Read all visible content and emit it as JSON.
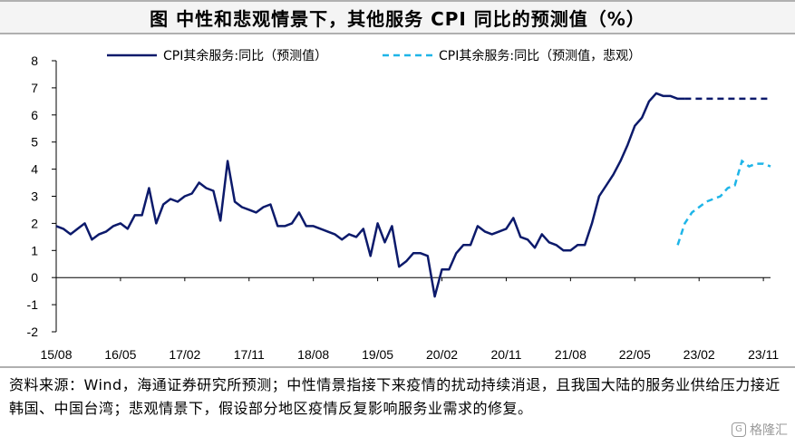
{
  "title": "图  中性和悲观情景下，其他服务 CPI 同比的预测值（%）",
  "footer": {
    "text": "资料来源：Wind，海通证券研究所预测；中性情景指接下来疫情的扰动持续消退，且我国大陆的服务业供给压力接近韩国、中国台湾；悲观情景下，假设部分地区疫情反复影响服务业需求的修复。"
  },
  "watermark": {
    "text": "格隆汇",
    "icon": "g-logo-icon"
  },
  "chart_data": {
    "type": "line",
    "title": "",
    "xlabel": "",
    "ylabel": "",
    "ylim": [
      -2,
      8
    ],
    "yticks": [
      -2,
      -1,
      0,
      1,
      2,
      3,
      4,
      5,
      6,
      7,
      8
    ],
    "xticks": [
      "15/08",
      "16/05",
      "17/02",
      "17/11",
      "18/08",
      "19/05",
      "20/02",
      "20/11",
      "21/08",
      "22/05",
      "23/02",
      "23/11"
    ],
    "x_start": "2015-08",
    "x_end": "2023-12",
    "grid": false,
    "legend_position": "top",
    "series": [
      {
        "name": "CPI其余服务:同比（预测值）",
        "color": "#0c1a6b",
        "style": "solid",
        "x": [
          "2015-08",
          "2015-09",
          "2015-10",
          "2015-11",
          "2015-12",
          "2016-01",
          "2016-02",
          "2016-03",
          "2016-04",
          "2016-05",
          "2016-06",
          "2016-07",
          "2016-08",
          "2016-09",
          "2016-10",
          "2016-11",
          "2016-12",
          "2017-01",
          "2017-02",
          "2017-03",
          "2017-04",
          "2017-05",
          "2017-06",
          "2017-07",
          "2017-08",
          "2017-09",
          "2017-10",
          "2017-11",
          "2017-12",
          "2018-01",
          "2018-02",
          "2018-03",
          "2018-04",
          "2018-05",
          "2018-06",
          "2018-07",
          "2018-08",
          "2018-09",
          "2018-10",
          "2018-11",
          "2018-12",
          "2019-01",
          "2019-02",
          "2019-03",
          "2019-04",
          "2019-05",
          "2019-06",
          "2019-07",
          "2019-08",
          "2019-09",
          "2019-10",
          "2019-11",
          "2019-12",
          "2020-01",
          "2020-02",
          "2020-03",
          "2020-04",
          "2020-05",
          "2020-06",
          "2020-07",
          "2020-08",
          "2020-09",
          "2020-10",
          "2020-11",
          "2020-12",
          "2021-01",
          "2021-02",
          "2021-03",
          "2021-04",
          "2021-05",
          "2021-06",
          "2021-07",
          "2021-08",
          "2021-09",
          "2021-10",
          "2021-11",
          "2021-12",
          "2022-01",
          "2022-02",
          "2022-03",
          "2022-04",
          "2022-05",
          "2022-06",
          "2022-07",
          "2022-08",
          "2022-09",
          "2022-10",
          "2022-11",
          "2022-12",
          "2023-01",
          "2023-02",
          "2023-03",
          "2023-04",
          "2023-05",
          "2023-06",
          "2023-07",
          "2023-08",
          "2023-09",
          "2023-10",
          "2023-11",
          "2023-12"
        ],
        "values": [
          1.9,
          1.8,
          1.6,
          1.8,
          2.0,
          1.4,
          1.6,
          1.7,
          1.9,
          2.0,
          1.8,
          2.3,
          2.3,
          3.3,
          2.0,
          2.7,
          2.9,
          2.8,
          3.0,
          3.1,
          3.5,
          3.3,
          3.2,
          2.1,
          4.3,
          2.8,
          2.6,
          2.5,
          2.4,
          2.6,
          2.7,
          1.9,
          1.9,
          2.0,
          2.4,
          1.9,
          1.9,
          1.8,
          1.7,
          1.6,
          1.4,
          1.6,
          1.5,
          1.8,
          0.8,
          2.0,
          1.3,
          1.9,
          0.4,
          0.6,
          0.9,
          0.9,
          0.8,
          -0.7,
          0.3,
          0.3,
          0.9,
          1.2,
          1.2,
          1.9,
          1.7,
          1.6,
          1.7,
          1.8,
          2.2,
          1.5,
          1.4,
          1.1,
          1.6,
          1.3,
          1.2,
          1.0,
          1.0,
          1.2,
          1.2,
          2.0,
          3.0,
          3.4,
          3.8,
          4.3,
          4.9,
          5.6,
          5.9,
          6.5,
          6.8,
          6.7,
          6.7,
          6.6,
          6.6,
          6.6,
          6.6,
          6.6,
          6.6,
          6.6,
          6.6,
          6.6,
          6.6,
          6.6,
          6.6,
          6.6,
          6.6
        ],
        "forecast_from": "2022-12"
      },
      {
        "name": "CPI其余服务:同比（预测值，悲观）",
        "color": "#1fb5e8",
        "style": "dashed",
        "x": [
          "2022-11",
          "2022-12",
          "2023-01",
          "2023-02",
          "2023-03",
          "2023-04",
          "2023-05",
          "2023-06",
          "2023-07",
          "2023-08",
          "2023-09",
          "2023-10",
          "2023-11",
          "2023-12"
        ],
        "values": [
          1.2,
          2.0,
          2.4,
          2.6,
          2.8,
          2.9,
          3.0,
          3.3,
          3.4,
          4.3,
          4.1,
          4.2,
          4.2,
          4.1
        ]
      }
    ]
  }
}
